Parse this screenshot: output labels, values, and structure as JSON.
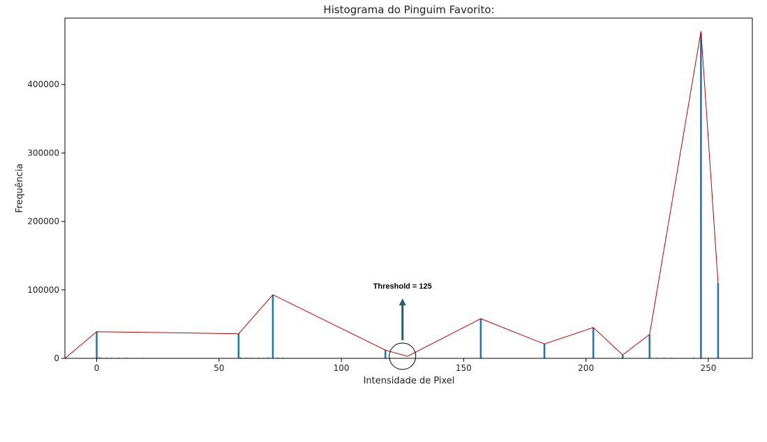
{
  "chart_data": {
    "type": "bar",
    "title": "Histograma do Pinguim Favorito:",
    "xlabel": "Intensidade de Pixel",
    "ylabel": "Frequência",
    "xlim": [
      -13,
      268
    ],
    "ylim": [
      0,
      497000
    ],
    "xticks": [
      0,
      50,
      100,
      150,
      200,
      250
    ],
    "yticks": [
      0,
      100000,
      200000,
      300000,
      400000
    ],
    "ytick_labels": [
      "0",
      "100000",
      "200000",
      "300000",
      "400000"
    ],
    "grid": false,
    "bar_color": "#1f77b4",
    "bars": [
      {
        "x": 0,
        "y": 39000
      },
      {
        "x": 1,
        "y": 1200
      },
      {
        "x": 2,
        "y": 900
      },
      {
        "x": 4,
        "y": 900
      },
      {
        "x": 6,
        "y": 800
      },
      {
        "x": 9,
        "y": 900
      },
      {
        "x": 12,
        "y": 800
      },
      {
        "x": 19,
        "y": 700
      },
      {
        "x": 58,
        "y": 36000
      },
      {
        "x": 59,
        "y": 1000
      },
      {
        "x": 61,
        "y": 900
      },
      {
        "x": 63,
        "y": 800
      },
      {
        "x": 66,
        "y": 900
      },
      {
        "x": 68,
        "y": 800
      },
      {
        "x": 70,
        "y": 1200
      },
      {
        "x": 72,
        "y": 93000
      },
      {
        "x": 74,
        "y": 1000
      },
      {
        "x": 76,
        "y": 900
      },
      {
        "x": 118,
        "y": 12000
      },
      {
        "x": 157,
        "y": 58000
      },
      {
        "x": 183,
        "y": 21000
      },
      {
        "x": 203,
        "y": 45000
      },
      {
        "x": 215,
        "y": 5000
      },
      {
        "x": 226,
        "y": 35000
      },
      {
        "x": 229,
        "y": 800
      },
      {
        "x": 232,
        "y": 800
      },
      {
        "x": 235,
        "y": 800
      },
      {
        "x": 244,
        "y": 900
      },
      {
        "x": 247,
        "y": 475000
      },
      {
        "x": 254,
        "y": 110000
      }
    ],
    "envelope": {
      "color": "#c00000",
      "points": [
        [
          -13,
          0
        ],
        [
          0,
          39000
        ],
        [
          58,
          36000
        ],
        [
          72,
          93000
        ],
        [
          118,
          12000
        ],
        [
          127,
          3000
        ],
        [
          157,
          58000
        ],
        [
          183,
          21000
        ],
        [
          203,
          45000
        ],
        [
          215,
          5000
        ],
        [
          226,
          35000
        ],
        [
          247,
          478000
        ],
        [
          254,
          110000
        ]
      ]
    },
    "annotation": {
      "text": "Threshold = 125",
      "threshold": 125,
      "arrow_color": "#1f5f78"
    }
  }
}
